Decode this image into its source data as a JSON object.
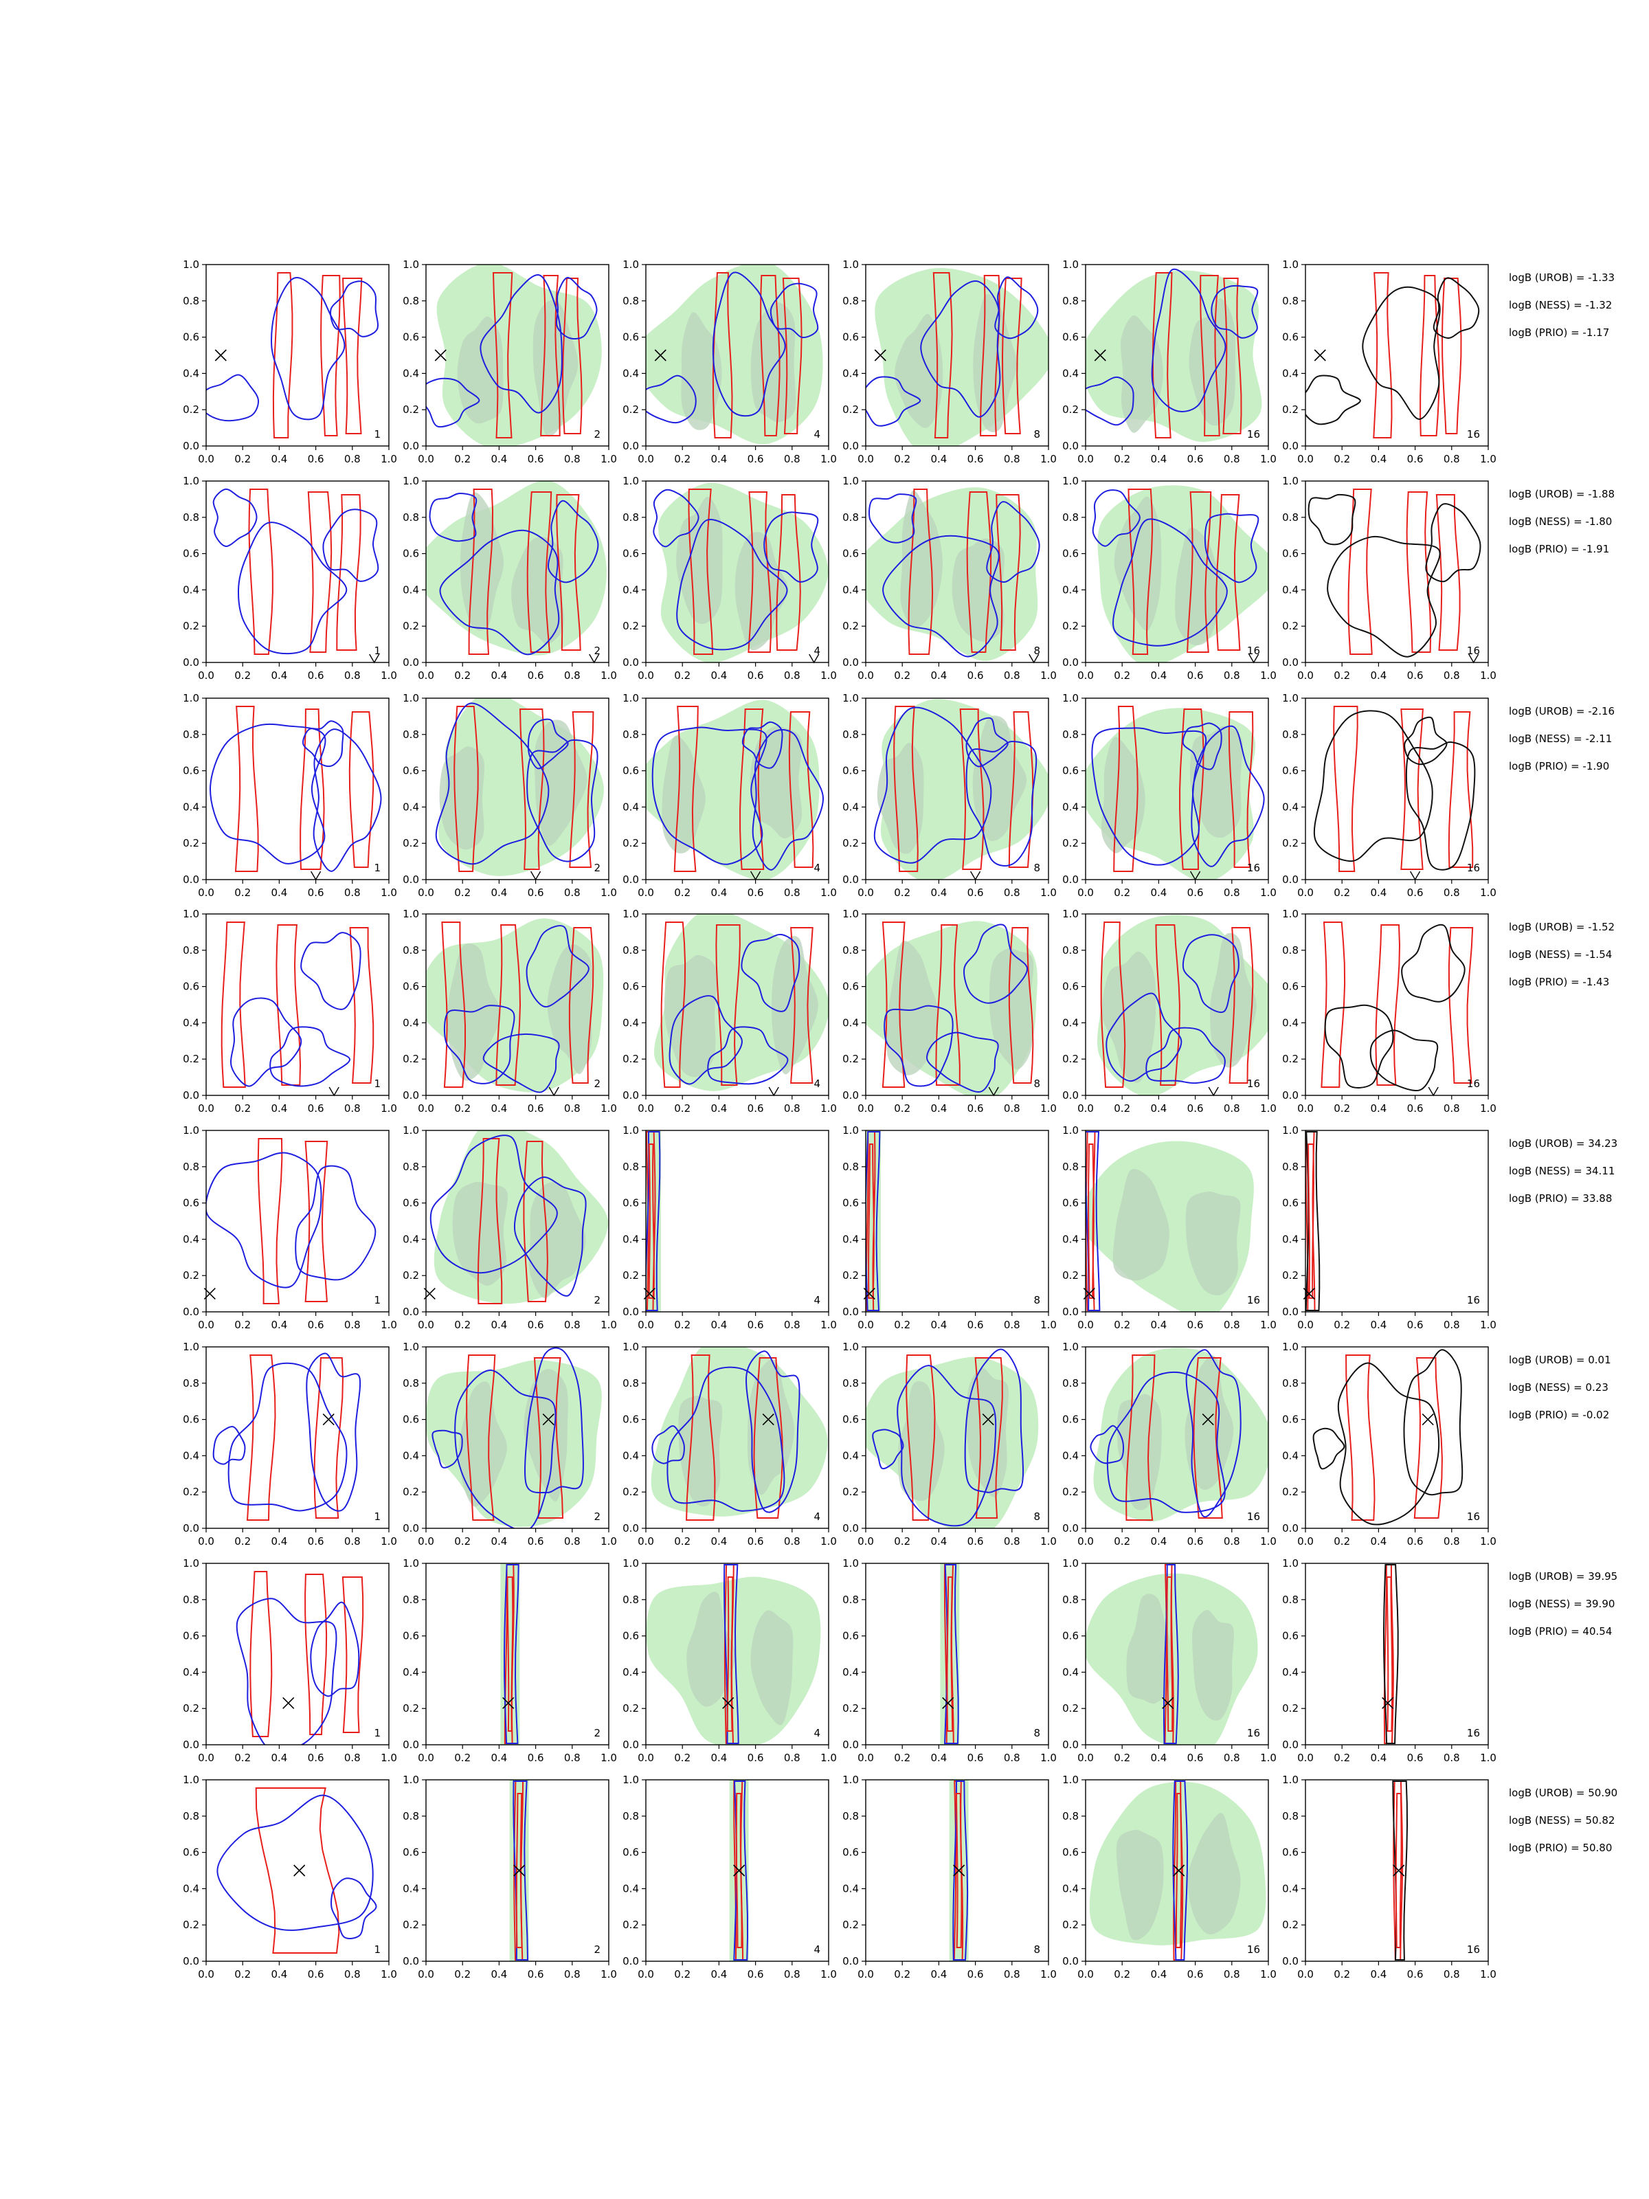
{
  "chart_data": {
    "type": "contour",
    "grid_rows": 8,
    "grid_cols": 6,
    "axes": {
      "xlim": [
        0.0,
        1.0
      ],
      "ylim": [
        0.0,
        1.0
      ],
      "xticks": [
        "0.0",
        "0.2",
        "0.4",
        "0.6",
        "0.8",
        "1.0"
      ],
      "yticks": [
        "0.0",
        "0.2",
        "0.4",
        "0.6",
        "0.8",
        "1.0"
      ]
    },
    "colors": {
      "red": "#e8201c",
      "blue": "#1f1fe0",
      "black": "#111111",
      "fill": "#c9efc6",
      "fill_dark": "#bcd4bd"
    },
    "column_labels": [
      "1",
      "2",
      "4",
      "8",
      "16",
      "16"
    ],
    "rows": [
      {
        "marker": [
          0.08,
          0.5
        ],
        "marker_type": "x",
        "logB": [
          "logB (UROB) = -1.33",
          "logB (NESS) = -1.32",
          "logB (PRIO) = -1.17"
        ],
        "red_x": [
          0.42,
          0.68,
          0.8
        ],
        "red_w": 0.08,
        "blue_blobs": [
          [
            0.12,
            0.25,
            0.15,
            0.12
          ],
          [
            0.55,
            0.55,
            0.2,
            0.35
          ],
          [
            0.82,
            0.75,
            0.12,
            0.15
          ]
        ],
        "fill_blobs": [
          [
            0.5,
            0.5,
            0.48,
            0.48
          ],
          [
            0.3,
            0.4,
            0.12,
            0.3
          ],
          [
            0.7,
            0.45,
            0.12,
            0.35
          ]
        ]
      },
      {
        "marker": [
          0.92,
          0.0
        ],
        "marker_type": "v",
        "logB": [
          "logB (UROB) = -1.88",
          "logB (NESS) = -1.80",
          "logB (PRIO) = -1.91"
        ],
        "red_x": [
          0.3,
          0.62,
          0.78
        ],
        "red_w": 0.1,
        "blue_blobs": [
          [
            0.45,
            0.4,
            0.3,
            0.32
          ],
          [
            0.8,
            0.65,
            0.14,
            0.2
          ],
          [
            0.15,
            0.8,
            0.12,
            0.14
          ]
        ],
        "fill_blobs": [
          [
            0.5,
            0.5,
            0.48,
            0.46
          ],
          [
            0.3,
            0.55,
            0.12,
            0.35
          ],
          [
            0.62,
            0.4,
            0.14,
            0.3
          ]
        ]
      },
      {
        "marker": [
          0.6,
          0.0
        ],
        "marker_type": "v",
        "logB": [
          "logB (UROB) = -2.16",
          "logB (NESS) = -2.11",
          "logB (PRIO) = -1.90"
        ],
        "red_x": [
          0.22,
          0.58,
          0.85
        ],
        "red_w": 0.1,
        "blue_blobs": [
          [
            0.35,
            0.5,
            0.3,
            0.4
          ],
          [
            0.75,
            0.45,
            0.18,
            0.35
          ],
          [
            0.65,
            0.75,
            0.1,
            0.12
          ]
        ],
        "fill_blobs": [
          [
            0.5,
            0.5,
            0.47,
            0.47
          ],
          [
            0.2,
            0.45,
            0.12,
            0.3
          ],
          [
            0.72,
            0.55,
            0.14,
            0.32
          ]
        ]
      },
      {
        "marker": [
          0.7,
          0.0
        ],
        "marker_type": "v",
        "logB": [
          "logB (UROB) = -1.52",
          "logB (NESS) = -1.54",
          "logB (PRIO) = -1.43"
        ],
        "red_x": [
          0.15,
          0.45,
          0.85
        ],
        "red_w": 0.1,
        "blue_blobs": [
          [
            0.3,
            0.3,
            0.18,
            0.22
          ],
          [
            0.7,
            0.7,
            0.15,
            0.2
          ],
          [
            0.55,
            0.2,
            0.2,
            0.15
          ]
        ],
        "fill_blobs": [
          [
            0.5,
            0.5,
            0.48,
            0.47
          ],
          [
            0.25,
            0.45,
            0.14,
            0.35
          ],
          [
            0.8,
            0.5,
            0.12,
            0.35
          ]
        ]
      },
      {
        "marker": [
          0.02,
          0.1
        ],
        "marker_type": "x",
        "logB": [
          "logB (UROB) = 34.23",
          "logB (NESS) = 34.11",
          "logB (PRIO) = 33.88"
        ],
        "red_x": [
          0.35,
          0.6
        ],
        "red_w": 0.1,
        "concentrated": true,
        "conc_x": 0.03,
        "blue_blobs": [
          [
            0.35,
            0.55,
            0.3,
            0.35
          ],
          [
            0.7,
            0.45,
            0.2,
            0.3
          ]
        ],
        "fill_blobs": [
          [
            0.5,
            0.5,
            0.47,
            0.47
          ],
          [
            0.3,
            0.45,
            0.15,
            0.3
          ],
          [
            0.7,
            0.4,
            0.15,
            0.3
          ]
        ]
      },
      {
        "marker": [
          0.67,
          0.6
        ],
        "marker_type": "x",
        "logB": [
          "logB (UROB) = 0.01",
          "logB (NESS) = 0.23",
          "logB (PRIO) = -0.02"
        ],
        "red_x": [
          0.3,
          0.67
        ],
        "red_w": 0.12,
        "blue_blobs": [
          [
            0.45,
            0.45,
            0.3,
            0.4
          ],
          [
            0.7,
            0.55,
            0.15,
            0.42
          ],
          [
            0.12,
            0.45,
            0.08,
            0.1
          ]
        ],
        "fill_blobs": [
          [
            0.5,
            0.5,
            0.47,
            0.47
          ],
          [
            0.3,
            0.45,
            0.12,
            0.32
          ],
          [
            0.67,
            0.55,
            0.12,
            0.35
          ]
        ]
      },
      {
        "marker": [
          0.45,
          0.23
        ],
        "marker_type": "x",
        "logB": [
          "logB (UROB) = 39.95",
          "logB (NESS) = 39.90",
          "logB (PRIO) = 40.54"
        ],
        "red_x": [
          0.3,
          0.6,
          0.8
        ],
        "red_w": 0.09,
        "concentrated": true,
        "conc_x": 0.46,
        "blue_blobs": [
          [
            0.45,
            0.4,
            0.28,
            0.4
          ],
          [
            0.7,
            0.5,
            0.12,
            0.25
          ]
        ],
        "fill_blobs": [
          [
            0.5,
            0.5,
            0.47,
            0.47
          ],
          [
            0.35,
            0.5,
            0.12,
            0.3
          ],
          [
            0.7,
            0.45,
            0.12,
            0.3
          ]
        ]
      },
      {
        "marker": [
          0.51,
          0.5
        ],
        "marker_type": "x",
        "logB": [
          "logB (UROB) = 50.90",
          "logB (NESS) = 50.82",
          "logB (PRIO) = 50.80"
        ],
        "red_x": [
          0.5
        ],
        "red_w": 0.35,
        "concentrated": true,
        "conc_x": 0.51,
        "blue_blobs": [
          [
            0.5,
            0.5,
            0.38,
            0.36
          ],
          [
            0.8,
            0.3,
            0.12,
            0.15
          ]
        ],
        "fill_blobs": [
          [
            0.5,
            0.5,
            0.47,
            0.47
          ],
          [
            0.3,
            0.45,
            0.13,
            0.3
          ],
          [
            0.7,
            0.45,
            0.13,
            0.32
          ]
        ]
      }
    ]
  }
}
